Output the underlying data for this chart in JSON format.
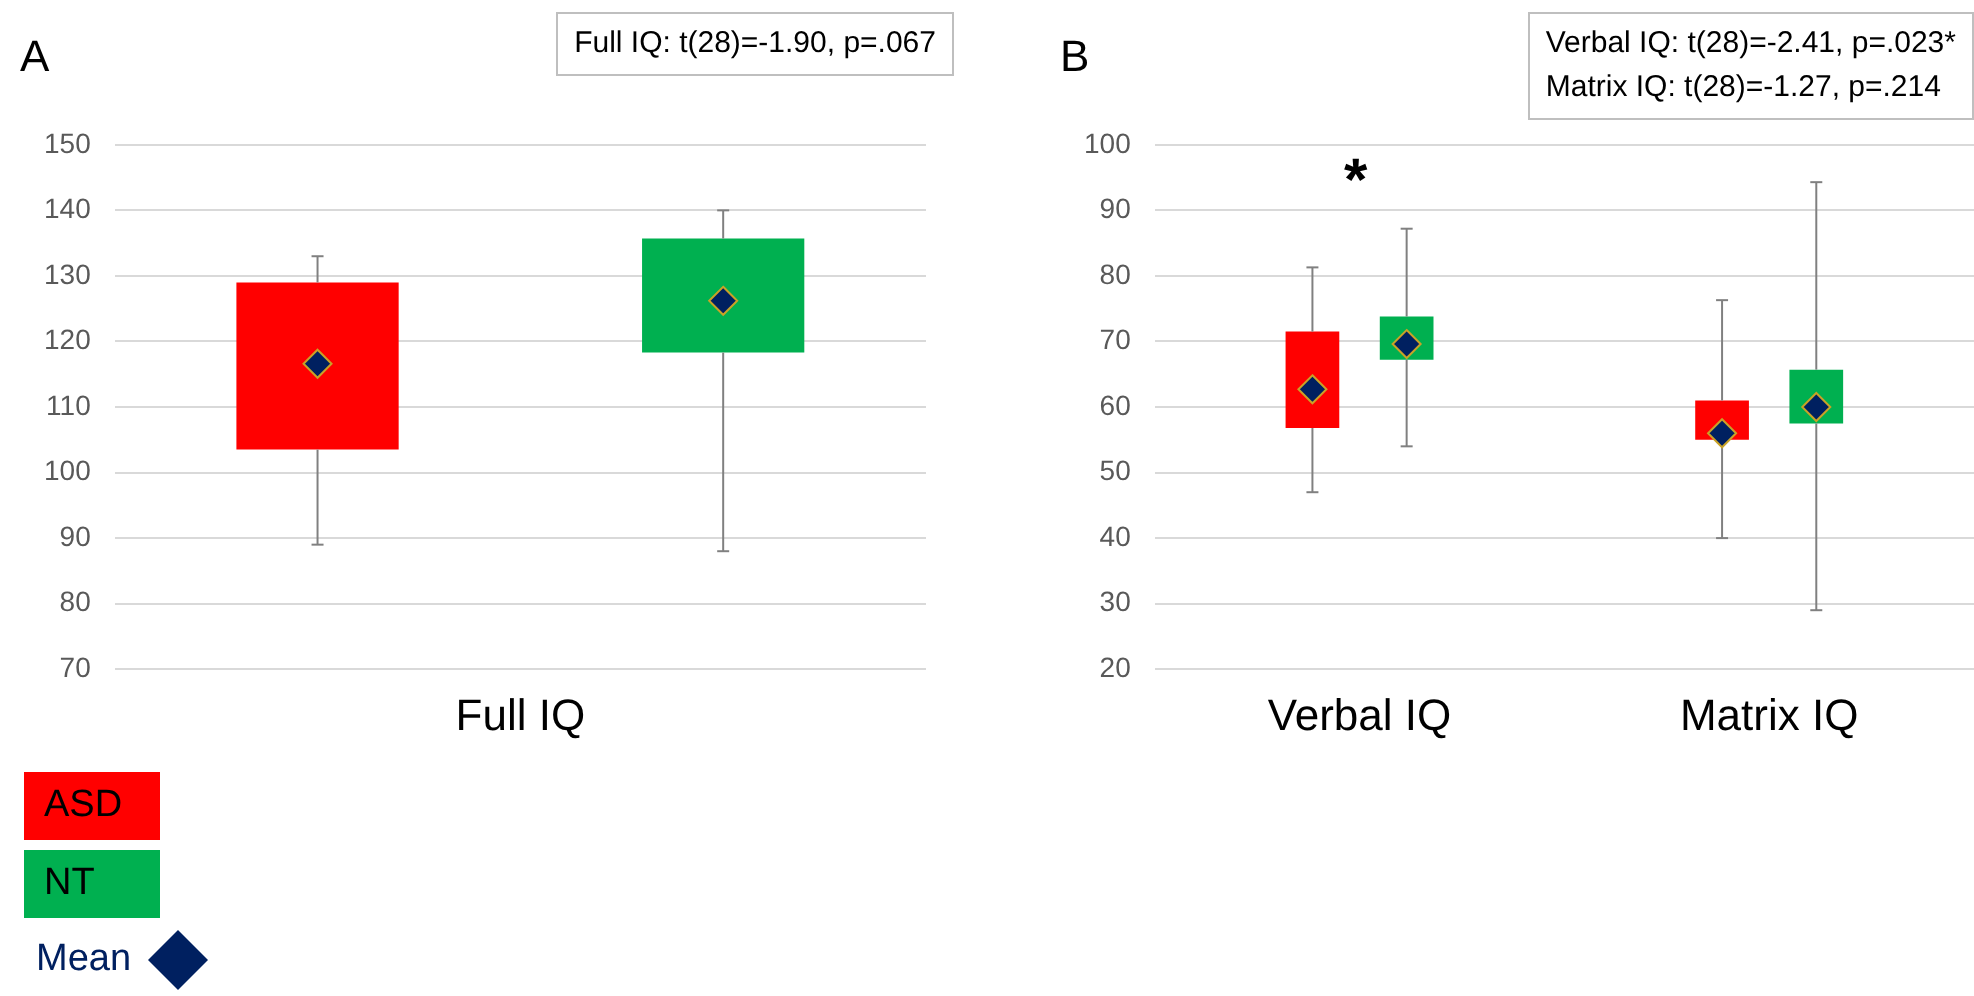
{
  "chart_data": [
    {
      "type": "box",
      "title": "A",
      "categories": [
        "Full IQ"
      ],
      "series": [
        {
          "name": "ASD",
          "color": "#ff0000",
          "boxes": [
            {
              "low": 89,
              "q1": 103.5,
              "q3": 129,
              "high": 133
            }
          ]
        },
        {
          "name": "NT",
          "color": "#00b050",
          "boxes": [
            {
              "low": 88,
              "q1": 118.3,
              "q3": 135.7,
              "high": 140
            }
          ]
        },
        {
          "name": "Mean",
          "type": "scatter",
          "marker": "diamond",
          "color": "#002060",
          "x": [
            "Full IQ",
            "Full IQ"
          ],
          "values": [
            116.6,
            126.2
          ]
        }
      ],
      "ylim": [
        70,
        150
      ],
      "yticks": [
        70,
        80,
        90,
        100,
        110,
        120,
        130,
        140,
        150
      ],
      "grid": "y",
      "legend": "bottom left",
      "annotations": [
        "Full IQ: t(28)=-1.90, p=.067"
      ]
    },
    {
      "type": "box",
      "title": "B",
      "categories": [
        "Verbal IQ",
        "Matrix IQ"
      ],
      "series": [
        {
          "color": "#ff0000",
          "boxes": [
            {
              "low": 47,
              "q1": 56.8,
              "q3": 71.5,
              "high": 81.3
            },
            {
              "low": 40,
              "q1": 55,
              "q3": 61,
              "high": 76.3
            }
          ]
        },
        {
          "color": "#00b050",
          "boxes": [
            {
              "low": 54,
              "q1": 67.2,
              "q3": 73.8,
              "high": 87.2
            },
            {
              "low": 29,
              "q1": 57.5,
              "q3": 65.7,
              "high": 94.3
            }
          ]
        },
        {
          "type": "scatter",
          "marker": "diamond",
          "color": "#002060",
          "x": [
            "Verbal IQ",
            "Verbal IQ",
            "Matrix IQ",
            "Matrix IQ"
          ],
          "values": [
            62.7,
            69.6,
            56,
            60
          ]
        }
      ],
      "ylim": [
        20,
        100
      ],
      "yticks": [
        20,
        30,
        40,
        50,
        60,
        70,
        80,
        90,
        100
      ],
      "grid": "y",
      "annotations": [
        "Verbal IQ: t(28)=-2.41, p=.023*",
        "Matrix IQ: t(28)=-1.27, p=.214",
        "*"
      ]
    }
  ]
}
